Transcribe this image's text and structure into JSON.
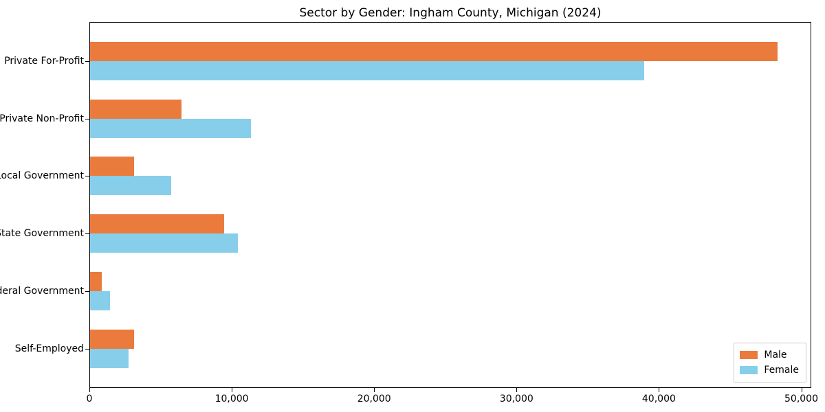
{
  "title": "Sector by Gender: Ingham County, Michigan (2024)",
  "chart_data": {
    "type": "bar",
    "orientation": "horizontal",
    "title": "Sector by Gender: Ingham County, Michigan (2024)",
    "categories": [
      "Private For-Profit",
      "Private Non-Profit",
      "Local Government",
      "State Government",
      "Federal Government",
      "Self-Employed"
    ],
    "series": [
      {
        "name": "Male",
        "color": "#eb7a3d",
        "values": [
          48300,
          6400,
          3100,
          9400,
          800,
          3100
        ]
      },
      {
        "name": "Female",
        "color": "#87ceeb",
        "values": [
          38900,
          11300,
          5700,
          10400,
          1400,
          2700
        ]
      }
    ],
    "xlabel": "",
    "ylabel": "",
    "xlim": [
      0,
      50700
    ],
    "xticks": [
      0,
      10000,
      20000,
      30000,
      40000,
      50000
    ],
    "xtick_labels": [
      "0",
      "10,000",
      "20,000",
      "30,000",
      "40,000",
      "50,000"
    ],
    "grid": false,
    "legend_position": "lower right",
    "legend": {
      "items": [
        {
          "label": "Male",
          "color": "#eb7a3d"
        },
        {
          "label": "Female",
          "color": "#87ceeb"
        }
      ]
    }
  }
}
